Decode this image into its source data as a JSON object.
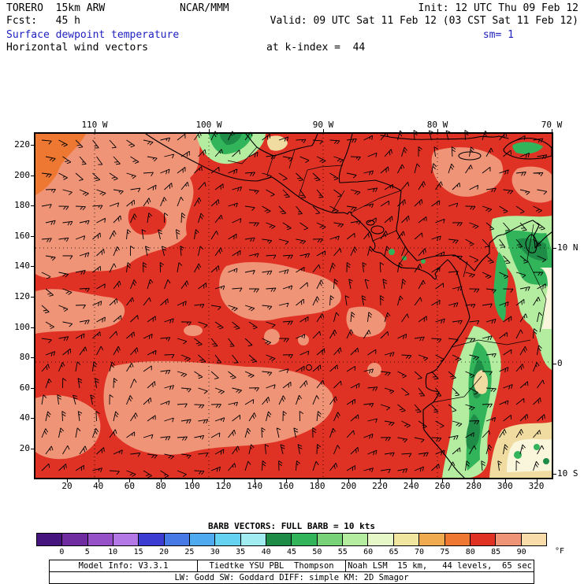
{
  "header": {
    "model": "TORERO  15km ARW",
    "org": "NCAR/MMM",
    "init": "Init: 12 UTC Thu 09 Feb 12",
    "fcst": "Fcst:   45 h",
    "valid": "Valid: 09 UTC Sat 11 Feb 12 (03 CST Sat 11 Feb 12)",
    "field_main": "Surface dewpoint temperature",
    "sm": "sm= 1",
    "field_secondary": "Horizontal wind vectors",
    "level": "at k-index =  44"
  },
  "axes": {
    "top": [
      "110 W",
      "100 W",
      "90 W",
      "80 W",
      "70 W"
    ],
    "right": [
      "10 N",
      "0",
      "10 S"
    ],
    "left": [
      "220",
      "200",
      "180",
      "160",
      "140",
      "120",
      "100",
      "80",
      "60",
      "40",
      "20"
    ],
    "bottom": [
      "20",
      "40",
      "60",
      "80",
      "100",
      "120",
      "140",
      "160",
      "180",
      "200",
      "220",
      "240",
      "260",
      "280",
      "300",
      "320"
    ]
  },
  "legend": {
    "barb_note": "BARB VECTORS: FULL BARB = 10 kts",
    "unit": "°F",
    "ticks": [
      "0",
      "5",
      "10",
      "15",
      "20",
      "25",
      "30",
      "35",
      "40",
      "45",
      "50",
      "55",
      "60",
      "65",
      "70",
      "75",
      "80",
      "85",
      "90"
    ],
    "colors": [
      "#46167e",
      "#6e2ca0",
      "#9650c8",
      "#b478e6",
      "#3c3cd2",
      "#4678e6",
      "#50aaf0",
      "#64d2f0",
      "#a0ecf0",
      "#1e8c46",
      "#32b45a",
      "#78d278",
      "#b4eca0",
      "#e6f8c8",
      "#f0e6a0",
      "#f0aa50",
      "#ee7832",
      "#e03224",
      "#f09478",
      "#f8dcaa"
    ]
  },
  "footer": {
    "cells": [
      "Model Info: V3.3.1",
      "Tiedtke YSU PBL  Thompson",
      "Noah LSM  15 km,   44 levels,  65 sec"
    ],
    "line2": "LW: Godd SW: Goddard DIFF: simple KM: 2D Smagor"
  },
  "palette": {
    "red_base": "#e03224",
    "salmon": "#f09478",
    "orange": "#ee7832",
    "tan": "#f0dca0",
    "cream": "#faf6dc",
    "green_light": "#b4eca0",
    "green_mid": "#32b45a",
    "green_dark": "#1e8c46",
    "text_blue": "#2020c0"
  }
}
